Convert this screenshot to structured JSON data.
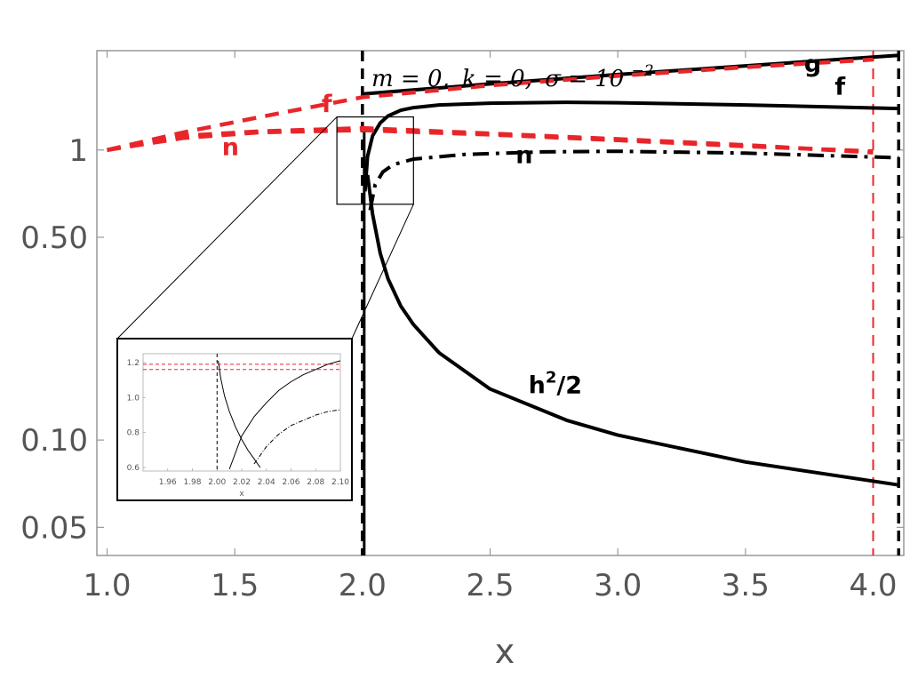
{
  "chart_data": {
    "type": "line",
    "title": "",
    "annotation": "m = 0, k = 0, σ = 10⁻²",
    "annotation_parts": {
      "m": "m = 0,",
      "k": "k = 0,",
      "sigma": "σ = 10",
      "sigma_exp": "−2"
    },
    "xlabel": "x",
    "ylabel": "",
    "yscale": "log",
    "xlim": [
      0.96,
      4.12
    ],
    "ylim": [
      0.04,
      2.2
    ],
    "grid": false,
    "legend": "none",
    "x_ticks": [
      "1.0",
      "1.5",
      "2.0",
      "2.5",
      "3.0",
      "3.5",
      "4.0"
    ],
    "y_ticks": [
      {
        "value": 0.05,
        "label": "0.05"
      },
      {
        "value": 0.1,
        "label": "0.10"
      },
      {
        "value": 0.5,
        "label": "0.50"
      },
      {
        "value": 1.0,
        "label": "1"
      }
    ],
    "vertical_lines": [
      {
        "x": 2.0,
        "color": "#000000",
        "style": "dashed"
      },
      {
        "x": 4.0,
        "color": "#e8262a",
        "style": "dashed"
      },
      {
        "x": 4.1,
        "color": "#000000",
        "style": "dashed"
      }
    ],
    "series": [
      {
        "name": "g",
        "color": "#000000",
        "style": "solid",
        "x": [
          2.0,
          2.5,
          3.0,
          3.5,
          4.1
        ],
        "y": [
          1.56,
          1.69,
          1.82,
          1.95,
          2.12
        ]
      },
      {
        "name": "f",
        "color": "#000000",
        "style": "solid",
        "x": [
          2.01,
          2.02,
          2.04,
          2.07,
          2.1,
          2.15,
          2.2,
          2.3,
          2.5,
          2.8,
          3.0,
          3.5,
          4.1
        ],
        "y": [
          0.72,
          0.95,
          1.12,
          1.24,
          1.31,
          1.37,
          1.4,
          1.43,
          1.45,
          1.46,
          1.455,
          1.43,
          1.39
        ]
      },
      {
        "name": "n",
        "color": "#000000",
        "style": "dashdot",
        "x": [
          2.03,
          2.05,
          2.08,
          2.12,
          2.2,
          2.4,
          2.7,
          3.0,
          3.5,
          4.1
        ],
        "y": [
          0.62,
          0.76,
          0.84,
          0.89,
          0.93,
          0.965,
          0.985,
          0.99,
          0.975,
          0.94
        ]
      },
      {
        "name": "h²/2",
        "color": "#000000",
        "style": "solid",
        "x": [
          2.02,
          2.04,
          2.07,
          2.1,
          2.15,
          2.2,
          2.3,
          2.5,
          2.8,
          3.0,
          3.5,
          4.1
        ],
        "y": [
          0.82,
          0.6,
          0.44,
          0.36,
          0.29,
          0.25,
          0.2,
          0.15,
          0.117,
          0.104,
          0.084,
          0.07
        ]
      },
      {
        "name": "f",
        "color": "#e8262a",
        "style": "dashed",
        "x": [
          1.0,
          1.3,
          1.6,
          2.0,
          2.5,
          3.0,
          3.5,
          4.0
        ],
        "y": [
          1.0,
          1.15,
          1.3,
          1.52,
          1.67,
          1.8,
          1.93,
          2.05
        ]
      },
      {
        "name": "n",
        "color": "#e8262a",
        "style": "dashed",
        "x": [
          1.0,
          1.3,
          1.6,
          2.0,
          2.5,
          3.0,
          3.5,
          4.0
        ],
        "y": [
          1.0,
          1.1,
          1.15,
          1.17,
          1.13,
          1.08,
          1.03,
          0.99
        ]
      },
      {
        "name": "",
        "color": "#e8262a",
        "style": "dashed",
        "x": [
          1.0,
          1.3,
          1.6,
          2.0,
          2.5,
          3.0,
          3.5,
          4.0
        ],
        "y": [
          1.0,
          1.12,
          1.16,
          1.19,
          1.14,
          1.09,
          1.04,
          0.98
        ]
      }
    ],
    "labels": [
      {
        "text": "g",
        "color": "#000000",
        "at_x": 3.73,
        "at_y": 1.86
      },
      {
        "text": "f",
        "color": "#000000",
        "at_x": 3.85,
        "at_y": 1.55
      },
      {
        "text": "n",
        "color": "#000000",
        "at_x": 2.6,
        "at_y": 0.9
      },
      {
        "text": "h",
        "sup": "2",
        "suffix": "/2",
        "color": "#000000",
        "at_x": 2.65,
        "at_y": 0.145
      },
      {
        "text": "f",
        "color": "#e8262a",
        "at_x": 1.84,
        "at_y": 1.35
      },
      {
        "text": "n",
        "color": "#e8262a",
        "at_x": 1.45,
        "at_y": 0.96
      }
    ],
    "inset": {
      "type": "line",
      "xlabel": "x",
      "xlim": [
        1.94,
        2.1
      ],
      "ylim": [
        0.58,
        1.25
      ],
      "x_ticks": [
        "1.96",
        "1.98",
        "2.00",
        "2.02",
        "2.04",
        "2.06",
        "2.08",
        "2.10"
      ],
      "y_ticks": [
        "0.6",
        "0.8",
        "1.0",
        "1.2"
      ],
      "vertical_lines": [
        {
          "x": 2.0,
          "color": "#000000",
          "style": "dashed"
        }
      ],
      "horizontal_lines": [
        {
          "y": 1.19,
          "color": "#e8262a",
          "style": "dashed"
        },
        {
          "y": 1.16,
          "color": "#e8262a",
          "style": "dashed"
        }
      ],
      "series": [
        {
          "name": "f",
          "color": "#000000",
          "style": "solid",
          "x": [
            2.01,
            2.02,
            2.03,
            2.04,
            2.05,
            2.06,
            2.07,
            2.08,
            2.09,
            2.1
          ],
          "y": [
            0.59,
            0.78,
            0.89,
            0.97,
            1.04,
            1.09,
            1.13,
            1.16,
            1.19,
            1.21
          ]
        },
        {
          "name": "h²/2",
          "color": "#000000",
          "style": "solid",
          "x": [
            2.001,
            2.003,
            2.006,
            2.01,
            2.015,
            2.02,
            2.025,
            2.03,
            2.035
          ],
          "y": [
            1.21,
            1.11,
            1.01,
            0.92,
            0.83,
            0.76,
            0.7,
            0.65,
            0.6
          ]
        },
        {
          "name": "n",
          "color": "#000000",
          "style": "dashdot",
          "x": [
            2.03,
            2.04,
            2.05,
            2.06,
            2.07,
            2.08,
            2.09,
            2.1
          ],
          "y": [
            0.62,
            0.72,
            0.79,
            0.84,
            0.87,
            0.9,
            0.92,
            0.93
          ]
        }
      ],
      "zoom_region": {
        "x": [
          1.9,
          2.2
        ],
        "y": [
          0.65,
          1.3
        ]
      }
    }
  }
}
